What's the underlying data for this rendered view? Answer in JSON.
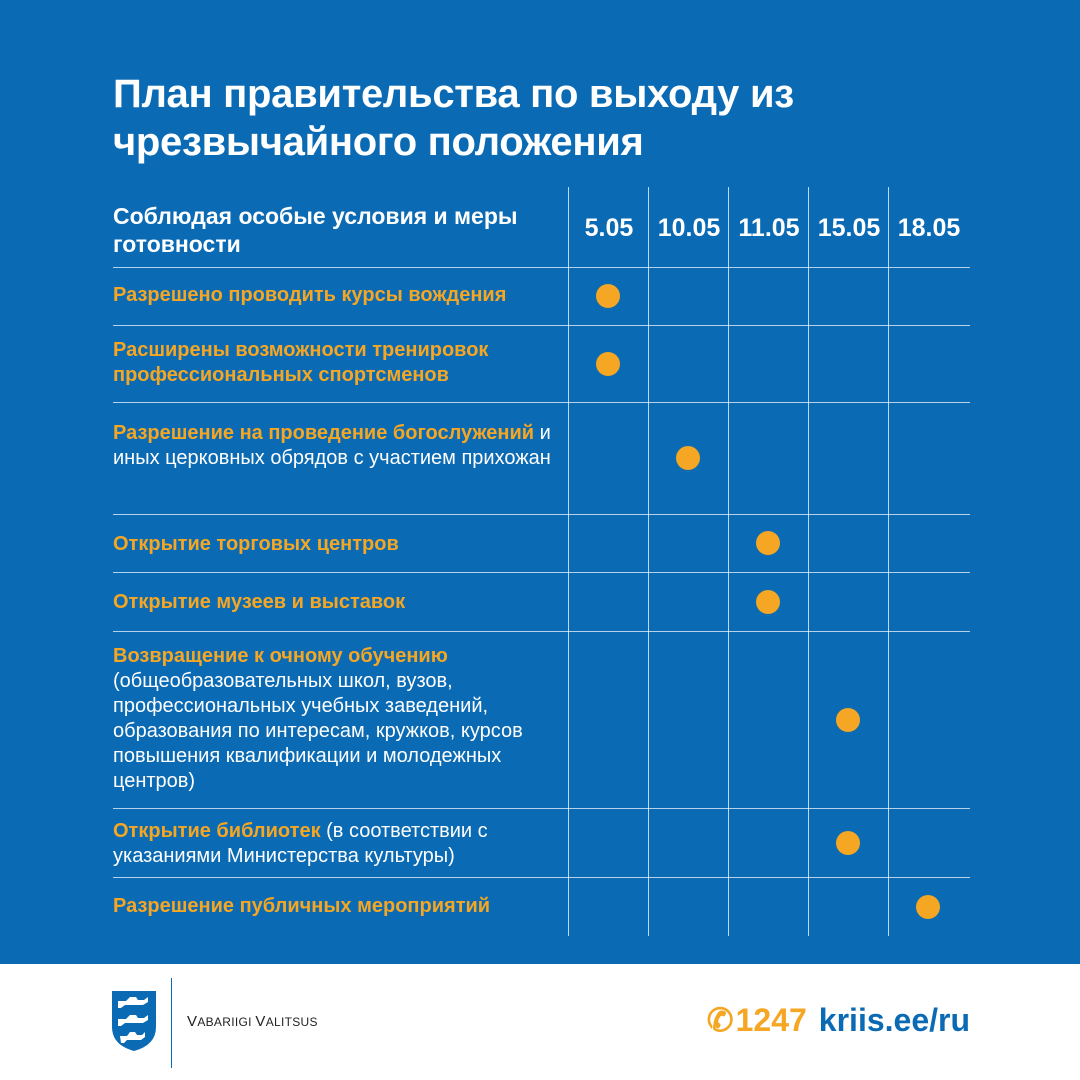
{
  "title": {
    "line1": "План правительства по выходу из",
    "line2": "чрезвычайного положения"
  },
  "table": {
    "header_label": "Соблюдая особые условия и меры готовности",
    "dates": [
      "5.05",
      "10.05",
      "11.05",
      "15.05",
      "18.05"
    ],
    "rows": [
      {
        "parts": [
          {
            "text": "Разрешено проводить курсы вождения",
            "highlight": true
          }
        ],
        "date_index": 0
      },
      {
        "parts": [
          {
            "text": "Расширены возможности тренировок профессиональных спортсменов",
            "highlight": true
          }
        ],
        "date_index": 0
      },
      {
        "parts": [
          {
            "text": "Разрешение на проведение богослужений",
            "highlight": true
          },
          {
            "text": " и иных церковных обрядов с участием прихожан",
            "highlight": false
          }
        ],
        "date_index": 1
      },
      {
        "parts": [
          {
            "text": "Открытие торговых центров",
            "highlight": true
          }
        ],
        "date_index": 2
      },
      {
        "parts": [
          {
            "text": "Открытие музеев и выставок",
            "highlight": true
          }
        ],
        "date_index": 2
      },
      {
        "parts": [
          {
            "text": "Возвращение к очному обучению",
            "highlight": true
          },
          {
            "text": " (общеобразовательных школ, вузов, профессиональных учебных заведений, образования по интересам, кружков, курсов повышения квалификации и молодежных центров)",
            "highlight": false
          }
        ],
        "date_index": 3
      },
      {
        "parts": [
          {
            "text": "Открытие библиотек",
            "highlight": true
          },
          {
            "text": " (в соответствии с указаниями Министерства культуры)",
            "highlight": false
          }
        ],
        "date_index": 3
      },
      {
        "parts": [
          {
            "text": "Разрешение публичных мероприятий",
            "highlight": true
          }
        ],
        "date_index": 4
      }
    ]
  },
  "footer": {
    "org_first": "V",
    "org_rest1": "ABARIIGI ",
    "org_second": "V",
    "org_rest2": "ALITSUS",
    "logo_icon": "three-lions-coat-of-arms-icon",
    "phone_icon": "phone-handset-icon",
    "phone_glyph": "✆",
    "phone": "1247",
    "website": "kriis.ee/ru"
  },
  "colors": {
    "background": "#0a6ab4",
    "accent": "#f5a623",
    "text": "#ffffff",
    "footer_bg": "#ffffff"
  }
}
